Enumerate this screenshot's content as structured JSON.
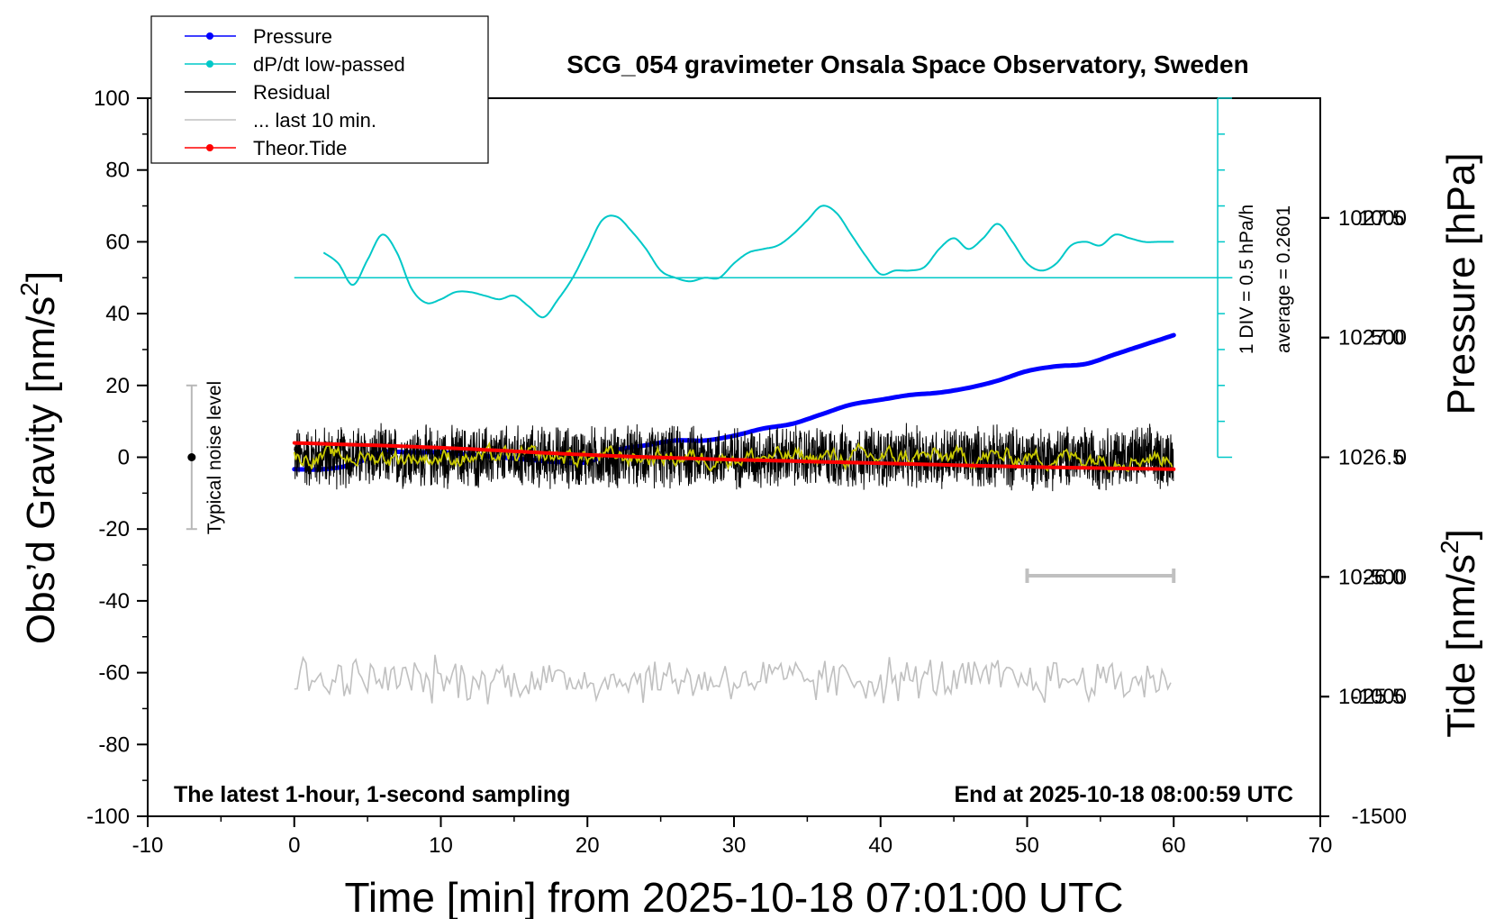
{
  "chart_data": {
    "type": "line",
    "title": "SCG_054 gravimeter Onsala Space Observatory, Sweden",
    "xlabel": "Time [min] from 2025-10-18 07:01:00 UTC",
    "ylabel_left": "Obs’d Gravity [nm/s",
    "ylabel_left_sup": "2",
    "ylabel_left_end": "]",
    "ylabel_right_top": "Pressure [hPa]",
    "ylabel_right_bottom": "Tide [nm/s",
    "ylabel_right_bottom_sup": "2",
    "ylabel_right_bottom_end": "]",
    "xlim": [
      -10,
      70
    ],
    "ylim": [
      -100,
      100
    ],
    "x_ticks": [
      -10,
      0,
      10,
      20,
      30,
      40,
      50,
      60,
      70
    ],
    "y_ticks": [
      -100,
      -80,
      -60,
      -40,
      -20,
      0,
      20,
      40,
      60,
      80,
      100
    ],
    "pressure_axis": {
      "ylim": [
        1025.0,
        1028.0
      ],
      "ticks": [
        "1027.5",
        "1027.0",
        "1026.5",
        "1026.0",
        "1025.5"
      ],
      "tick_values": [
        1027.5,
        1027.0,
        1026.5,
        1026.0,
        1025.5
      ]
    },
    "tide_axis": {
      "ylim": [
        -1500,
        1500
      ],
      "ticks": [
        "1000",
        "500",
        "0",
        "-500",
        "-1000",
        "-1500"
      ],
      "tick_values": [
        1000,
        500,
        0,
        -500,
        -1000,
        -1500
      ]
    },
    "legend": {
      "position": "top-left",
      "entries": [
        {
          "label": "Pressure",
          "color": "#0000ff",
          "marker": true
        },
        {
          "label": "dP/dt low-passed",
          "color": "#00c8c8",
          "marker": true
        },
        {
          "label": "Residual",
          "color": "#000000",
          "marker": false
        },
        {
          "label": "... last 10 min.",
          "color": "#c0c0c0",
          "marker": false
        },
        {
          "label": "Theor.Tide",
          "color": "#ff0000",
          "marker": true
        }
      ]
    },
    "annotations": {
      "noise_label": "Typical noise level",
      "noise_range": [
        -20,
        20
      ],
      "noise_x": -7,
      "div_label": "1 DIV = 0.5 hPa/h",
      "avg_label": "average = 0.2601",
      "bottom_left": "The latest 1-hour, 1-second sampling",
      "bottom_right": "End at 2025-10-18 08:00:59 UTC",
      "last10_bar": {
        "x": [
          50,
          60
        ],
        "y": -33
      },
      "dpdt_baseline_y": 50,
      "dpdt_axis_x": 63,
      "dpdt_axis_range": [
        0,
        100
      ]
    },
    "series": [
      {
        "name": "Pressure",
        "axis": "pressure",
        "color": "#0000ff",
        "points": [
          [
            0,
            1026.45
          ],
          [
            2,
            1026.45
          ],
          [
            4,
            1026.47
          ],
          [
            6,
            1026.52
          ],
          [
            8,
            1026.52
          ],
          [
            10,
            1026.52
          ],
          [
            12,
            1026.51
          ],
          [
            14,
            1026.5
          ],
          [
            16,
            1026.49
          ],
          [
            18,
            1026.48
          ],
          [
            20,
            1026.48
          ],
          [
            22,
            1026.53
          ],
          [
            24,
            1026.55
          ],
          [
            26,
            1026.57
          ],
          [
            28,
            1026.57
          ],
          [
            30,
            1026.59
          ],
          [
            32,
            1026.62
          ],
          [
            34,
            1026.64
          ],
          [
            36,
            1026.68
          ],
          [
            38,
            1026.72
          ],
          [
            40,
            1026.74
          ],
          [
            42,
            1026.76
          ],
          [
            44,
            1026.77
          ],
          [
            46,
            1026.79
          ],
          [
            48,
            1026.82
          ],
          [
            50,
            1026.86
          ],
          [
            52,
            1026.88
          ],
          [
            54,
            1026.89
          ],
          [
            56,
            1026.93
          ],
          [
            58,
            1026.97
          ],
          [
            60,
            1027.01
          ]
        ]
      },
      {
        "name": "dP/dt low-passed",
        "axis": "gravity",
        "color": "#00c8c8",
        "points": [
          [
            2,
            57
          ],
          [
            3,
            54
          ],
          [
            4,
            48
          ],
          [
            5,
            55
          ],
          [
            6,
            62
          ],
          [
            7,
            57
          ],
          [
            8,
            47
          ],
          [
            9,
            43
          ],
          [
            10,
            44
          ],
          [
            11,
            46
          ],
          [
            12,
            46
          ],
          [
            13,
            45
          ],
          [
            14,
            44
          ],
          [
            15,
            45
          ],
          [
            16,
            42
          ],
          [
            17,
            39
          ],
          [
            18,
            44
          ],
          [
            19,
            50
          ],
          [
            20,
            58
          ],
          [
            21,
            66
          ],
          [
            22,
            67
          ],
          [
            23,
            63
          ],
          [
            24,
            58
          ],
          [
            25,
            52
          ],
          [
            26,
            50
          ],
          [
            27,
            49
          ],
          [
            28,
            50
          ],
          [
            29,
            50
          ],
          [
            30,
            54
          ],
          [
            31,
            57
          ],
          [
            32,
            58
          ],
          [
            33,
            59
          ],
          [
            34,
            62
          ],
          [
            35,
            66
          ],
          [
            36,
            70
          ],
          [
            37,
            68
          ],
          [
            38,
            62
          ],
          [
            39,
            56
          ],
          [
            40,
            51
          ],
          [
            41,
            52
          ],
          [
            42,
            52
          ],
          [
            43,
            53
          ],
          [
            44,
            58
          ],
          [
            45,
            61
          ],
          [
            46,
            58
          ],
          [
            47,
            61
          ],
          [
            48,
            65
          ],
          [
            49,
            60
          ],
          [
            50,
            54
          ],
          [
            51,
            52
          ],
          [
            52,
            54
          ],
          [
            53,
            59
          ],
          [
            54,
            60
          ],
          [
            55,
            59
          ],
          [
            56,
            62
          ],
          [
            57,
            61
          ],
          [
            58,
            60
          ],
          [
            59,
            60
          ],
          [
            60,
            60
          ]
        ]
      },
      {
        "name": "Residual",
        "axis": "gravity",
        "color": "#000000",
        "amplitude": 9,
        "x_range": [
          0,
          60
        ]
      },
      {
        "name": "Residual low-passed",
        "axis": "gravity",
        "color": "#c8c800",
        "amplitude": 2,
        "x_range": [
          0,
          60
        ]
      },
      {
        "name": "... last 10 min.",
        "axis": "gravity",
        "color": "#c0c0c0",
        "center": -62,
        "amplitude": 6,
        "x_range": [
          0,
          60
        ]
      },
      {
        "name": "Theor.Tide",
        "axis": "tide",
        "color": "#ff0000",
        "points": [
          [
            0,
            60
          ],
          [
            10,
            40
          ],
          [
            20,
            10
          ],
          [
            30,
            -10
          ],
          [
            40,
            -25
          ],
          [
            50,
            -40
          ],
          [
            60,
            -50
          ]
        ]
      }
    ]
  }
}
